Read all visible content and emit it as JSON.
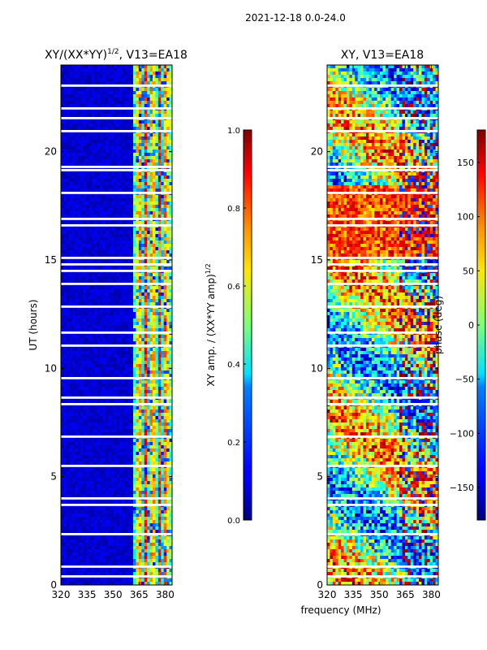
{
  "suptitle": "2021-12-18 0.0-24.0",
  "shared_xlabel": "frequency (MHz)",
  "chart_data": [
    {
      "type": "heatmap",
      "title_prefix": "XY/(XX*YY)",
      "title_sup": "1/2",
      "title_suffix": ", V13=EA18",
      "ylabel": "UT (hours)",
      "xlim": [
        320,
        384
      ],
      "ylim": [
        0,
        24
      ],
      "xticks": [
        320,
        335,
        350,
        365,
        380
      ],
      "yticks": [
        0,
        5,
        10,
        15,
        20
      ],
      "colormap": "jet",
      "colorbar": {
        "label_prefix": "XY amp. / (XX*YY amp)",
        "label_sup": "1/2",
        "vmin": 0.0,
        "vmax": 1.0,
        "ticks": [
          "0.0",
          "0.2",
          "0.4",
          "0.6",
          "0.8",
          "1.0"
        ],
        "tick_values": [
          0.0,
          0.2,
          0.4,
          0.6,
          0.8,
          1.0
        ]
      },
      "notes": "low (~0) amplitude below ~360 MHz; bright vertical streaks (0.4-0.9) between ~360 and ~382 MHz; white horizontal gaps are flagged time ranges"
    },
    {
      "type": "heatmap",
      "title": "XY, V13=EA18",
      "xlim": [
        320,
        384
      ],
      "ylim": [
        0,
        24
      ],
      "xticks": [
        320,
        335,
        350,
        365,
        380
      ],
      "yticks": [
        0,
        5,
        10,
        15,
        20
      ],
      "colormap": "jet",
      "colorbar": {
        "label": "phase (deg)",
        "vmin": -180,
        "vmax": 180,
        "ticks": [
          "150",
          "100",
          "50",
          "0",
          "−50",
          "−100",
          "−150"
        ],
        "tick_values": [
          150,
          100,
          50,
          0,
          -50,
          -100,
          -150
        ]
      },
      "notes": "noisy phase across the band, broad red/yellow bands near 15-18 h, white horizontal gaps are flagged time ranges"
    }
  ]
}
